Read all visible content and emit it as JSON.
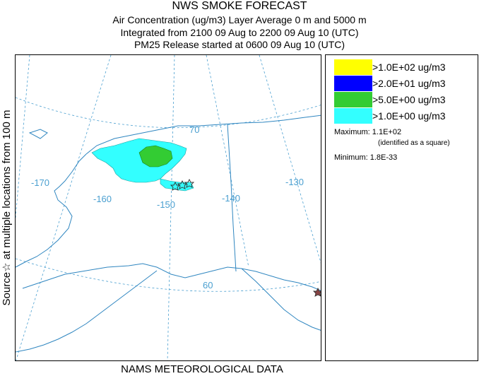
{
  "header": {
    "title": "NWS SMOKE FORECAST",
    "line1": "Air Concentration (ug/m3) Layer Average    0 m and  5000 m",
    "line2": "Integrated from 2100 09 Aug to 2200 09 Aug 10 (UTC)",
    "line3": "PM25 Release started at 0600 09 Aug 10 (UTC)"
  },
  "side_label": "Source☆  at multiple locations  from   100 m",
  "footer": "NAMS METEOROLOGICAL DATA",
  "legend": {
    "items": [
      {
        "label": ">1.0E+02 ug/m3",
        "color": "#ffff00"
      },
      {
        "label": ">2.0E+01 ug/m3",
        "color": "#0000ff"
      },
      {
        "label": ">5.0E+00 ug/m3",
        "color": "#33cc33"
      },
      {
        "label": ">1.0E+00 ug/m3",
        "color": "#33ffff"
      }
    ],
    "maximum": "Maximum: 1.1E+02",
    "maximum_note": "(identified as a square)",
    "minimum": "Minimum: 1.8E-33"
  },
  "map": {
    "longitude_labels": [
      "-170",
      "-160",
      "-150",
      "-140",
      "-130"
    ],
    "latitude_labels": [
      "70",
      "60"
    ],
    "grid_color": "#4a9fd0",
    "coast_color": "#2f86c0"
  }
}
